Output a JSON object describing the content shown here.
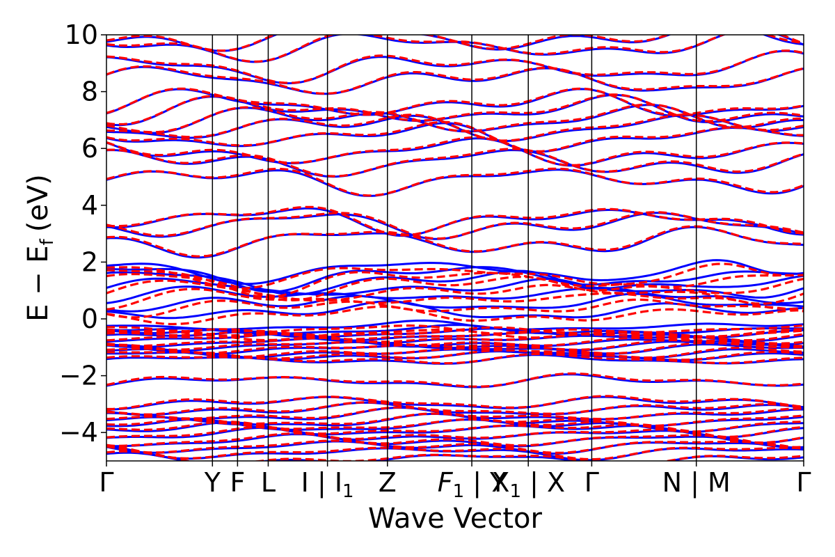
{
  "chart_data": {
    "type": "line",
    "title": "",
    "xlabel": "Wave Vector",
    "ylabel": "E − E",
    "ylabel_sub": "f",
    "ylabel_unit": "(eV)",
    "ylim": [
      -5,
      10
    ],
    "yticks": [
      -4,
      -2,
      0,
      2,
      4,
      6,
      8,
      10
    ],
    "ytick_labels": [
      "−4",
      "−2",
      "0",
      "2",
      "4",
      "6",
      "8",
      "10"
    ],
    "x_range": [
      0,
      1
    ],
    "kpoint_positions": [
      0.0,
      0.152,
      0.188,
      0.232,
      0.317,
      0.403,
      0.524,
      0.605,
      0.696,
      0.846,
      1.0
    ],
    "kpoint_labels": [
      {
        "main": "Γ",
        "sub": "",
        "italic": false
      },
      {
        "main": "Y",
        "sub": "",
        "italic": false
      },
      {
        "main": "F",
        "sub": "",
        "italic": false
      },
      {
        "main": "L",
        "sub": "",
        "italic": false
      },
      {
        "main": "I | I",
        "sub": "1",
        "italic": false
      },
      {
        "main": "Z",
        "sub": "",
        "italic": false
      },
      {
        "main": "F",
        "sub": "1",
        "italic": true,
        "suffix": " | Y"
      },
      {
        "main": "X",
        "sub": "1",
        "italic": false,
        "suffix": " | X"
      },
      {
        "main": "Γ",
        "sub": "",
        "italic": false
      },
      {
        "main": "N | M",
        "sub": "",
        "italic": false
      },
      {
        "main": "Γ",
        "sub": "",
        "italic": false
      }
    ],
    "grid": false,
    "legend": "none",
    "series": [
      {
        "style": "solid",
        "color": "#0000ff"
      },
      {
        "style": "dashed",
        "color": "#ff0000"
      }
    ],
    "bands_at_gamma": [
      -4.95,
      -4.7,
      -4.5,
      -4.3,
      -4.1,
      -3.9,
      -3.75,
      -3.6,
      -3.4,
      -3.2,
      -2.95,
      -2.2,
      -1.45,
      -1.3,
      -1.2,
      -1.05,
      -0.95,
      -0.85,
      -0.7,
      -0.6,
      -0.5,
      -0.4,
      -0.25,
      0.3,
      0.6,
      0.9,
      1.15,
      1.4,
      1.6,
      1.8,
      2.7,
      3.3,
      3.5,
      4.9,
      5.5,
      5.85,
      6.4,
      6.75,
      7.0,
      7.3,
      7.55,
      8.4,
      8.85,
      9.6,
      9.9
    ]
  }
}
